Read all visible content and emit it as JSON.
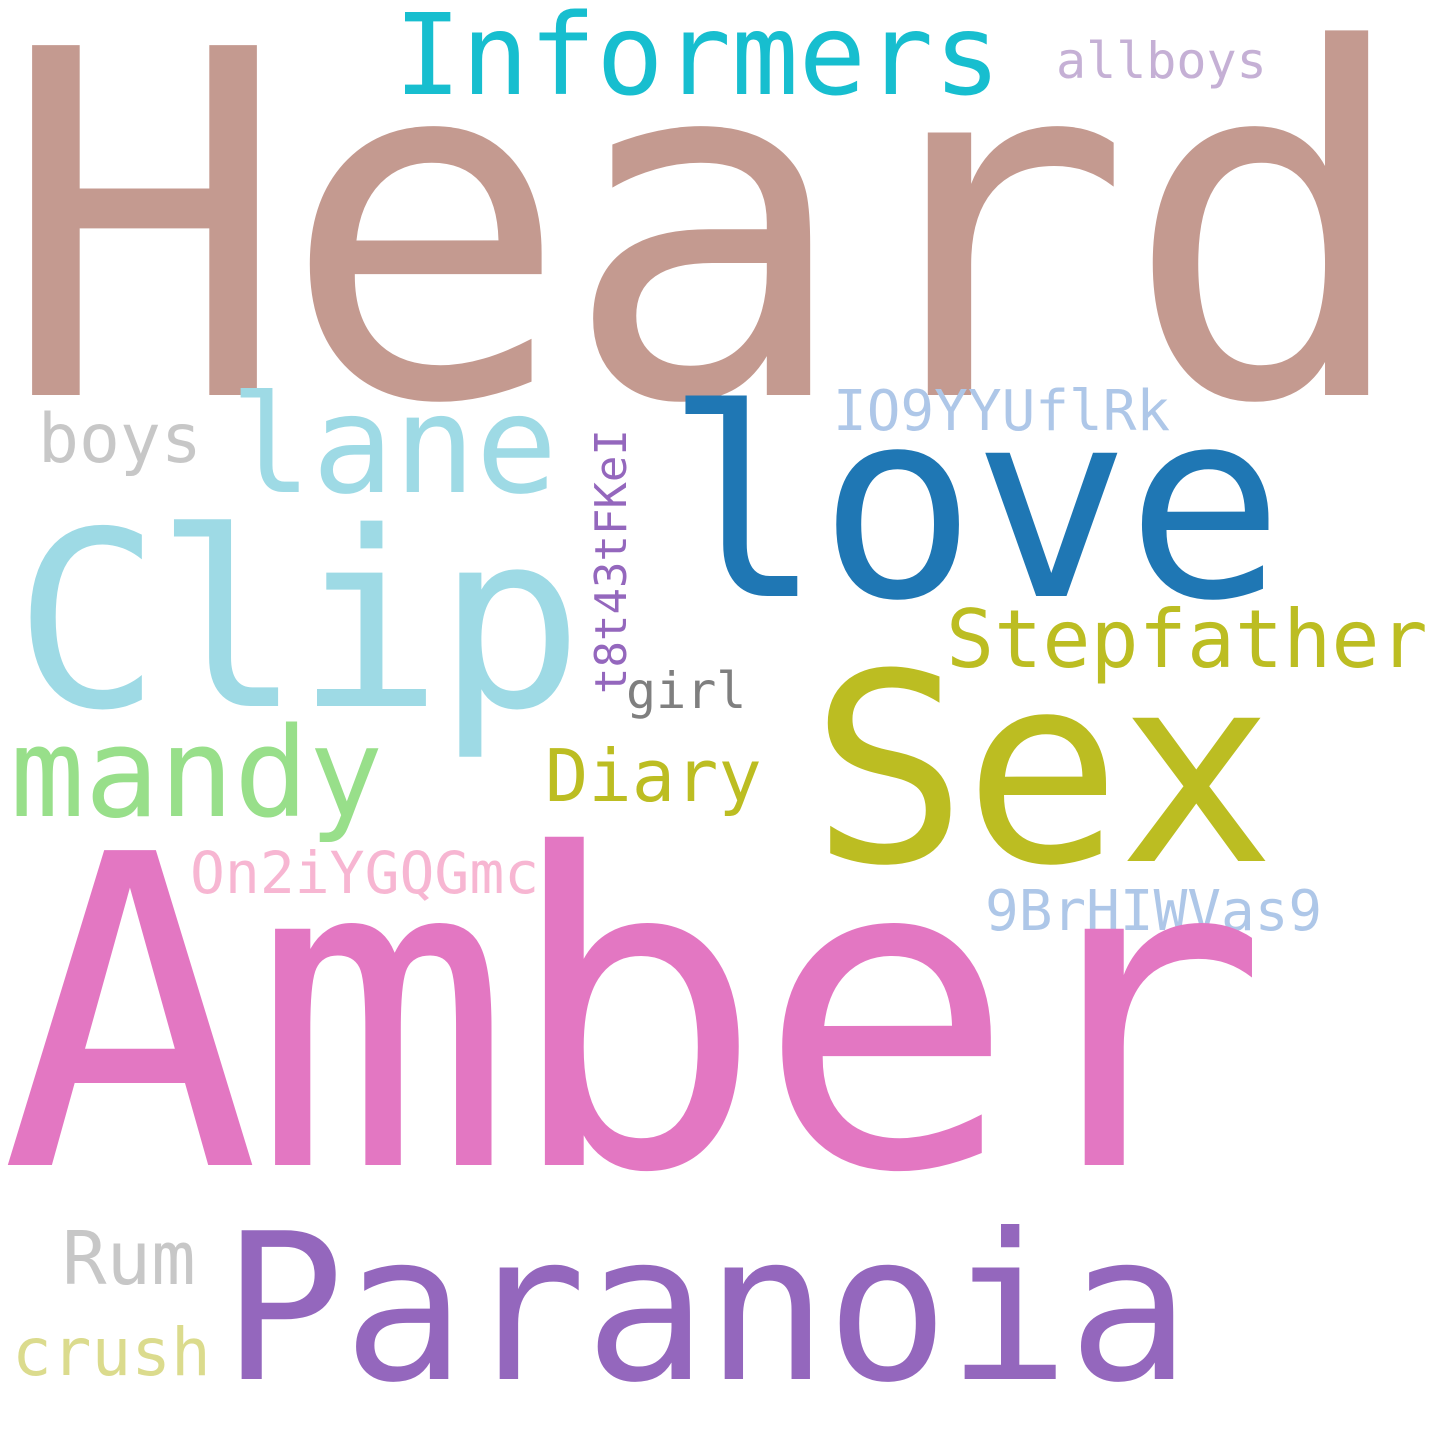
{
  "words": {
    "heard": {
      "text": "Heard",
      "color": "#c49a90"
    },
    "informers": {
      "text": "Informers",
      "color": "#17becf"
    },
    "allboys": {
      "text": "allboys",
      "color": "#c5b0d5"
    },
    "lane": {
      "text": "lane",
      "color": "#9edae5"
    },
    "love": {
      "text": "love",
      "color": "#1f77b4"
    },
    "io9": {
      "text": "IO9YYUflRk",
      "color": "#aec7e8"
    },
    "boys": {
      "text": "boys",
      "color": "#c7c7c7"
    },
    "clip": {
      "text": "Clip",
      "color": "#9edae5"
    },
    "t8t": {
      "text": "t8t43tFKeI",
      "color": "#9467bd"
    },
    "stepfather": {
      "text": "Stepfather",
      "color": "#bcbd22"
    },
    "sex": {
      "text": "Sex",
      "color": "#bcbd22"
    },
    "girl": {
      "text": "girl",
      "color": "#7f7f7f"
    },
    "mandy": {
      "text": "mandy",
      "color": "#98df8a"
    },
    "diary": {
      "text": "Diary",
      "color": "#bcbd22"
    },
    "on2i": {
      "text": "On2iYGQGmc",
      "color": "#f7b6d2"
    },
    "nine_br": {
      "text": "9BrHIWVas9",
      "color": "#aec7e8"
    },
    "amber": {
      "text": "Amber",
      "color": "#e377c2"
    },
    "rum": {
      "text": "Rum",
      "color": "#c7c7c7"
    },
    "paranoia": {
      "text": "Paranoia",
      "color": "#9467bd"
    },
    "crush": {
      "text": "crush",
      "color": "#dbdb8d"
    }
  }
}
